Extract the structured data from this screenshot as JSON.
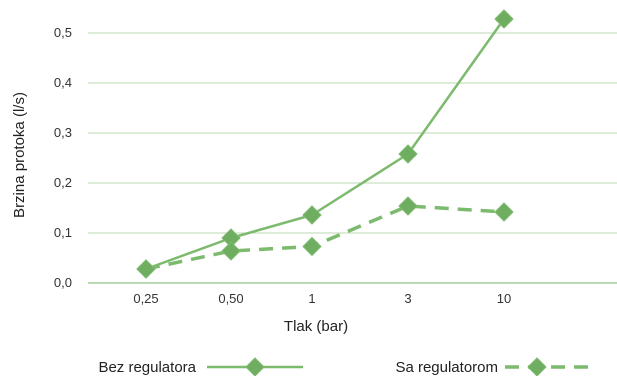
{
  "chart_data": {
    "type": "line",
    "title": "",
    "xlabel": "Tlak (bar)",
    "ylabel": "Brzina protoka (l/s)",
    "categories": [
      "0,25",
      "0,50",
      "1",
      "3",
      "10"
    ],
    "ylim": [
      0,
      0.55
    ],
    "yticks": [
      {
        "value": 0.0,
        "label": "0,0"
      },
      {
        "value": 0.1,
        "label": "0,1"
      },
      {
        "value": 0.2,
        "label": "0,2"
      },
      {
        "value": 0.3,
        "label": "0,3"
      },
      {
        "value": 0.4,
        "label": "0,4"
      },
      {
        "value": 0.5,
        "label": "0,5"
      }
    ],
    "grid": true,
    "legend_position": "bottom",
    "series": [
      {
        "name": "Bez regulatora",
        "style": "solid",
        "values": [
          0.028,
          0.09,
          0.136,
          0.258,
          0.528
        ]
      },
      {
        "name": "Sa regulatorom",
        "style": "dashed",
        "values": [
          0.028,
          0.064,
          0.073,
          0.154,
          0.142
        ]
      }
    ],
    "colors": {
      "series": "#7cba6d",
      "marker": "#6fae60",
      "grid": "#b9d8b0",
      "axis": "#8fc484"
    }
  }
}
